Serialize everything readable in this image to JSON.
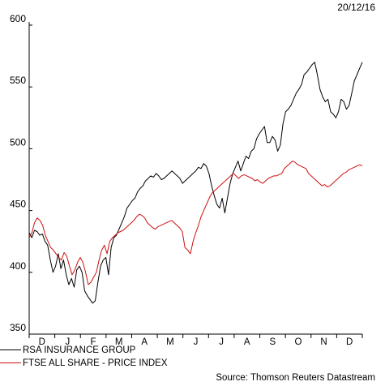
{
  "date_stamp": "20/12/16",
  "source": "Source: Thomson Reuters Datastream",
  "chart_data": {
    "type": "line",
    "ylim": [
      350,
      600
    ],
    "y_ticks": [
      350,
      400,
      450,
      500,
      550,
      600
    ],
    "x_tick_labels": [
      "D",
      "J",
      "F",
      "M",
      "A",
      "M",
      "J",
      "J",
      "A",
      "S",
      "O",
      "N",
      "D"
    ],
    "grid": false,
    "legend_placement": "bottom-left",
    "series": [
      {
        "name": "RSA INSURANCE GROUP",
        "color": "#000000",
        "values": [
          432,
          428,
          434,
          433,
          430,
          431,
          425,
          422,
          410,
          400,
          405,
          415,
          403,
          410,
          398,
          390,
          395,
          388,
          402,
          405,
          400,
          385,
          381,
          378,
          375,
          377,
          392,
          405,
          410,
          412,
          398,
          420,
          428,
          430,
          435,
          440,
          445,
          452,
          455,
          458,
          460,
          465,
          468,
          470,
          474,
          476,
          478,
          477,
          480,
          478,
          475,
          476,
          478,
          480,
          482,
          480,
          478,
          476,
          472,
          474,
          476,
          478,
          480,
          482,
          485,
          484,
          488,
          486,
          480,
          470,
          462,
          455,
          452,
          460,
          448,
          460,
          472,
          480,
          485,
          490,
          482,
          488,
          494,
          492,
          498,
          500,
          508,
          512,
          515,
          518,
          505,
          505,
          510,
          507,
          498,
          503,
          520,
          530,
          532,
          535,
          540,
          545,
          548,
          552,
          560,
          562,
          565,
          568,
          570,
          560,
          548,
          542,
          538,
          540,
          530,
          528,
          525,
          530,
          540,
          538,
          532,
          535,
          545,
          555,
          560,
          565,
          570
        ]
      },
      {
        "name": "FTSE ALL SHARE - PRICE INDEX",
        "color": "#cc1111",
        "values": [
          428,
          432,
          440,
          444,
          442,
          438,
          430,
          425,
          420,
          418,
          415,
          412,
          410,
          416,
          413,
          405,
          398,
          402,
          408,
          412,
          408,
          400,
          390,
          392,
          396,
          400,
          410,
          418,
          422,
          415,
          425,
          428,
          430,
          432,
          433,
          434,
          436,
          438,
          440,
          442,
          445,
          447,
          446,
          444,
          440,
          438,
          436,
          435,
          437,
          438,
          439,
          440,
          441,
          442,
          440,
          438,
          436,
          433,
          420,
          418,
          415,
          425,
          432,
          438,
          445,
          450,
          455,
          460,
          464,
          466,
          468,
          470,
          472,
          474,
          476,
          478,
          480,
          478,
          476,
          478,
          479,
          478,
          477,
          476,
          474,
          475,
          473,
          472,
          474,
          476,
          477,
          478,
          478,
          479,
          480,
          484,
          486,
          488,
          490,
          489,
          487,
          486,
          485,
          484,
          480,
          478,
          476,
          474,
          472,
          470,
          471,
          469,
          470,
          472,
          474,
          476,
          478,
          480,
          481,
          483,
          484,
          485,
          486,
          487,
          486
        ]
      }
    ]
  }
}
